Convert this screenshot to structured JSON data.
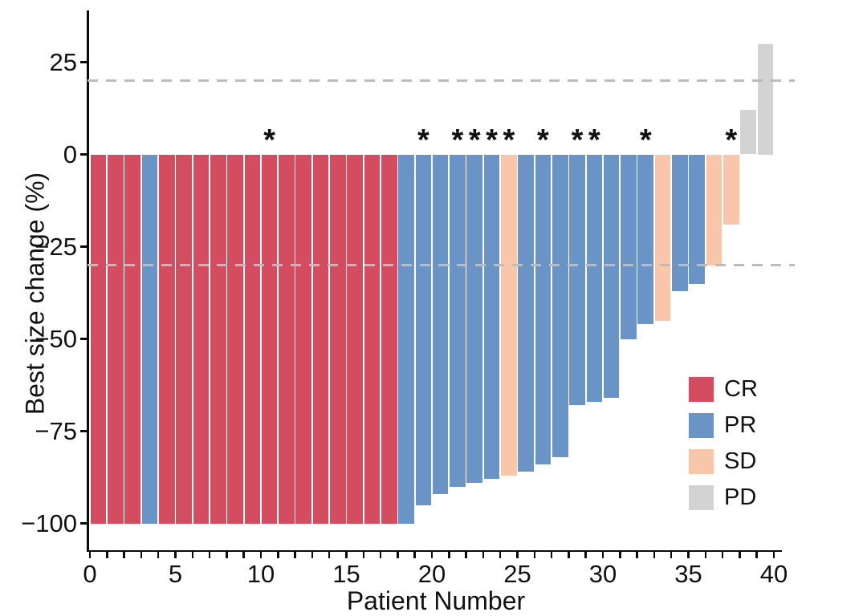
{
  "chart_data": {
    "type": "bar",
    "title": "",
    "xlabel": "Patient Number",
    "ylabel": "Best size change (%)",
    "x_ticks_labeled": [
      0,
      5,
      10,
      15,
      20,
      25,
      30,
      35,
      40
    ],
    "x_minor_tick_step": 1,
    "x_axis_range": [
      0,
      40
    ],
    "y_ticks": [
      25,
      0,
      -25,
      -50,
      -75,
      -100
    ],
    "y_tick_labels": [
      "25",
      "0",
      "−25",
      "−50",
      "−75",
      "−100"
    ],
    "ylim": [
      -100,
      30
    ],
    "grid": "off",
    "reference_lines": [
      20,
      -30
    ],
    "reference_line_style": "dashed",
    "legend_position": "right-center",
    "legend": [
      {
        "label": "CR",
        "color": "#d34c5f"
      },
      {
        "label": "PR",
        "color": "#6b94c6"
      },
      {
        "label": "SD",
        "color": "#f8c6aa"
      },
      {
        "label": "PD",
        "color": "#d3d3d3"
      }
    ],
    "series_note": "waterfall plot of best size change per patient; starred bars annotated with asterisk",
    "patients": [
      {
        "patient": 1,
        "value": -100,
        "response": "CR",
        "star": false
      },
      {
        "patient": 2,
        "value": -100,
        "response": "CR",
        "star": false
      },
      {
        "patient": 3,
        "value": -100,
        "response": "CR",
        "star": false
      },
      {
        "patient": 4,
        "value": -100,
        "response": "PR",
        "star": false
      },
      {
        "patient": 5,
        "value": -100,
        "response": "CR",
        "star": false
      },
      {
        "patient": 6,
        "value": -100,
        "response": "CR",
        "star": false
      },
      {
        "patient": 7,
        "value": -100,
        "response": "CR",
        "star": false
      },
      {
        "patient": 8,
        "value": -100,
        "response": "CR",
        "star": false
      },
      {
        "patient": 9,
        "value": -100,
        "response": "CR",
        "star": false
      },
      {
        "patient": 10,
        "value": -100,
        "response": "CR",
        "star": false
      },
      {
        "patient": 11,
        "value": -100,
        "response": "CR",
        "star": true
      },
      {
        "patient": 12,
        "value": -100,
        "response": "CR",
        "star": false
      },
      {
        "patient": 13,
        "value": -100,
        "response": "CR",
        "star": false
      },
      {
        "patient": 14,
        "value": -100,
        "response": "CR",
        "star": false
      },
      {
        "patient": 15,
        "value": -100,
        "response": "CR",
        "star": false
      },
      {
        "patient": 16,
        "value": -100,
        "response": "CR",
        "star": false
      },
      {
        "patient": 17,
        "value": -100,
        "response": "CR",
        "star": false
      },
      {
        "patient": 18,
        "value": -100,
        "response": "CR",
        "star": false
      },
      {
        "patient": 19,
        "value": -100,
        "response": "PR",
        "star": false
      },
      {
        "patient": 20,
        "value": -95,
        "response": "PR",
        "star": true
      },
      {
        "patient": 21,
        "value": -92,
        "response": "PR",
        "star": false
      },
      {
        "patient": 22,
        "value": -90,
        "response": "PR",
        "star": true
      },
      {
        "patient": 23,
        "value": -89,
        "response": "PR",
        "star": true
      },
      {
        "patient": 24,
        "value": -88,
        "response": "PR",
        "star": true
      },
      {
        "patient": 25,
        "value": -87,
        "response": "SD",
        "star": true
      },
      {
        "patient": 26,
        "value": -86,
        "response": "PR",
        "star": false
      },
      {
        "patient": 27,
        "value": -84,
        "response": "PR",
        "star": true
      },
      {
        "patient": 28,
        "value": -82,
        "response": "PR",
        "star": false
      },
      {
        "patient": 29,
        "value": -68,
        "response": "PR",
        "star": true
      },
      {
        "patient": 30,
        "value": -67,
        "response": "PR",
        "star": true
      },
      {
        "patient": 31,
        "value": -66,
        "response": "PR",
        "star": false
      },
      {
        "patient": 32,
        "value": -50,
        "response": "PR",
        "star": false
      },
      {
        "patient": 33,
        "value": -46,
        "response": "PR",
        "star": true
      },
      {
        "patient": 34,
        "value": -45,
        "response": "SD",
        "star": false
      },
      {
        "patient": 35,
        "value": -37,
        "response": "PR",
        "star": false
      },
      {
        "patient": 36,
        "value": -35,
        "response": "PR",
        "star": false
      },
      {
        "patient": 37,
        "value": -30,
        "response": "SD",
        "star": false
      },
      {
        "patient": 38,
        "value": -19,
        "response": "SD",
        "star": true
      },
      {
        "patient": 39,
        "value": 12,
        "response": "PD",
        "star": false
      },
      {
        "patient": 40,
        "value": 30,
        "response": "PD",
        "star": false
      }
    ]
  }
}
